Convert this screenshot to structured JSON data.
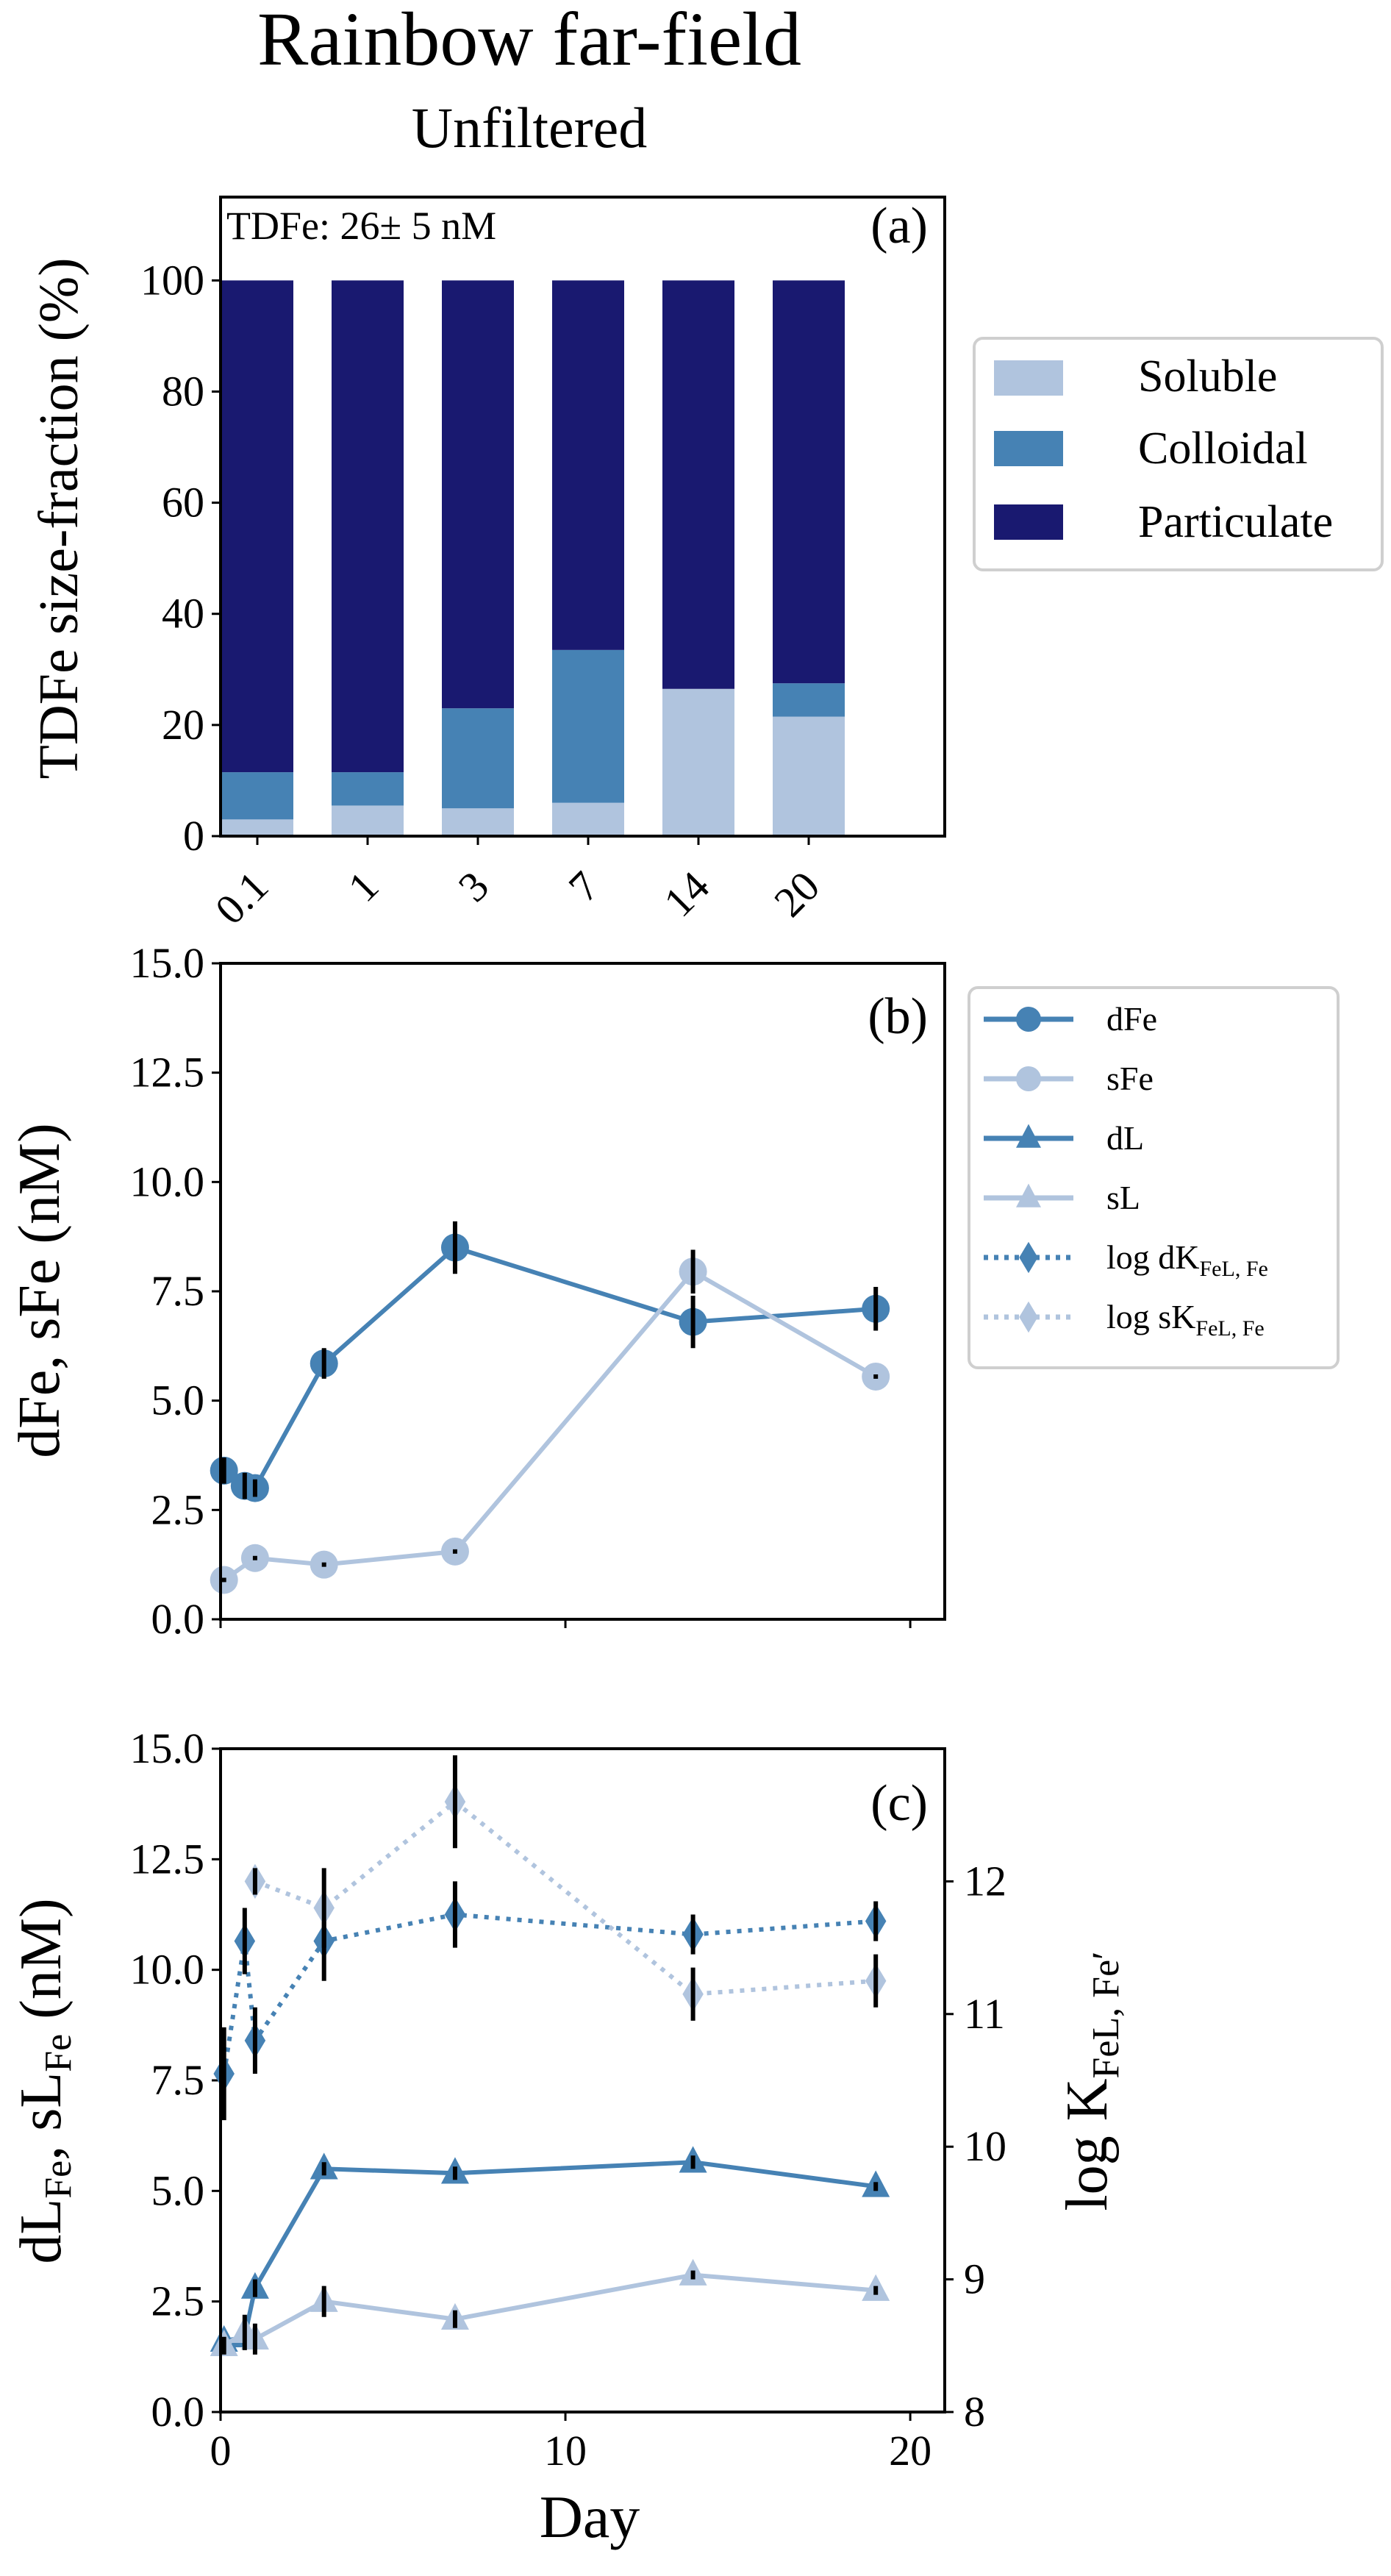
{
  "figure": {
    "title": "Rainbow far-field",
    "subtitle": "Unfiltered",
    "colors": {
      "soluble_bar": "#b0c4de",
      "colloidal_bar": "#4682b4",
      "particulate_bar": "#191970",
      "d_series": "#4682b4",
      "s_series": "#b0c4de"
    }
  },
  "chart_data": [
    {
      "type": "bar",
      "stacked": true,
      "panel_label": "(a)",
      "annotation": "TDFe: 26± 5 nM",
      "ylabel": "TDFe size-fraction (%)",
      "xlabel": "",
      "categories": [
        "0.1",
        "1",
        "3",
        "7",
        "14",
        "20"
      ],
      "ylim": [
        0,
        115
      ],
      "yticks": [
        0,
        20,
        40,
        60,
        80,
        100
      ],
      "series": [
        {
          "name": "Soluble",
          "color": "#b0c4de",
          "values": [
            3,
            5.5,
            5,
            6,
            26.5,
            21.5
          ]
        },
        {
          "name": "Colloidal",
          "color": "#4682b4",
          "values": [
            8.5,
            6,
            18,
            27.5,
            0,
            6
          ]
        },
        {
          "name": "Particulate",
          "color": "#191970",
          "values": [
            88.5,
            88.5,
            77,
            66.5,
            73.5,
            72.5
          ]
        }
      ],
      "legend": "right, outside"
    },
    {
      "type": "line",
      "panel_label": "(b)",
      "ylabel": "dFe, sFe (nM)",
      "xlabel": "",
      "xlim": [
        0,
        21
      ],
      "ylim": [
        0,
        15
      ],
      "yticks": [
        "0.0",
        "2.5",
        "5.0",
        "7.5",
        "10.0",
        "12.5",
        "15.0"
      ],
      "series": [
        {
          "name": "dFe",
          "color": "#4682b4",
          "marker": "circle",
          "x": [
            0.1,
            0.7,
            1.0,
            3.0,
            6.8,
            13.7,
            19.0
          ],
          "y": [
            3.4,
            3.05,
            3.0,
            5.85,
            8.5,
            6.8,
            7.1
          ],
          "err": [
            0.3,
            0.3,
            0.2,
            0.35,
            0.6,
            0.6,
            0.5
          ]
        },
        {
          "name": "sFe",
          "color": "#b0c4de",
          "marker": "circle",
          "x": [
            0.1,
            1.0,
            3.0,
            6.8,
            13.7,
            19.0
          ],
          "y": [
            0.9,
            1.4,
            1.25,
            1.55,
            7.95,
            5.55
          ],
          "err": [
            0.05,
            0.05,
            0.05,
            0.05,
            0.5,
            0.05
          ]
        }
      ],
      "legend": "right, outside"
    },
    {
      "type": "line",
      "panel_label": "(c)",
      "ylabel_left": "dL",
      "ylabel_left_sub": "Fe",
      "ylabel_left_mid": ", sL",
      "ylabel_left_sub2": "Fe",
      "ylabel_left_end": " (nM)",
      "ylabel_right": "log K",
      "ylabel_right_sub": "FeL, Fe′",
      "xlabel": "Day",
      "xlim": [
        0,
        21
      ],
      "xticks": [
        "0",
        "10",
        "20"
      ],
      "ylim_left": [
        0,
        15
      ],
      "yticks_left": [
        "0.0",
        "2.5",
        "5.0",
        "7.5",
        "10.0",
        "12.5",
        "15.0"
      ],
      "ylim_right": [
        8,
        13
      ],
      "yticks_right": [
        "8",
        "9",
        "10",
        "11",
        "12"
      ],
      "series": [
        {
          "name": "dL",
          "axis": "left",
          "color": "#4682b4",
          "marker": "triangle",
          "linestyle": "solid",
          "x": [
            0.1,
            0.7,
            1.0,
            3.0,
            6.8,
            13.7,
            19.0
          ],
          "y": [
            1.6,
            1.7,
            2.8,
            5.5,
            5.4,
            5.65,
            5.1
          ],
          "err": [
            0.1,
            0.2,
            0.2,
            0.15,
            0.15,
            0.15,
            0.1
          ]
        },
        {
          "name": "sL",
          "axis": "left",
          "color": "#b0c4de",
          "marker": "triangle",
          "linestyle": "solid",
          "x": [
            0.1,
            0.7,
            1.0,
            3.0,
            6.8,
            13.7,
            19.0
          ],
          "y": [
            1.5,
            1.8,
            1.65,
            2.5,
            2.1,
            3.1,
            2.75
          ],
          "err": [
            0.2,
            0.4,
            0.35,
            0.35,
            0.2,
            0.1,
            0.1
          ]
        },
        {
          "name": "log dK",
          "name_sub": "FeL, Fe",
          "axis": "right",
          "color": "#4682b4",
          "marker": "diamond",
          "linestyle": "dotted",
          "x": [
            0.1,
            0.7,
            1.0,
            3.0,
            6.8,
            13.7,
            19.0
          ],
          "y": [
            10.55,
            11.55,
            10.8,
            11.55,
            11.75,
            11.6,
            11.7
          ],
          "err": [
            0.35,
            0.25,
            0.25,
            0.3,
            0.25,
            0.15,
            0.15
          ]
        },
        {
          "name": "log sK",
          "name_sub": "FeL, Fe",
          "axis": "right",
          "color": "#b0c4de",
          "marker": "diamond",
          "linestyle": "dotted",
          "x": [
            1.0,
            3.0,
            6.8,
            13.7,
            19.0
          ],
          "y": [
            12.0,
            11.8,
            12.6,
            11.15,
            11.25
          ],
          "err": [
            0.1,
            0.3,
            0.35,
            0.2,
            0.2
          ]
        }
      ],
      "legend": "right, outside"
    }
  ]
}
